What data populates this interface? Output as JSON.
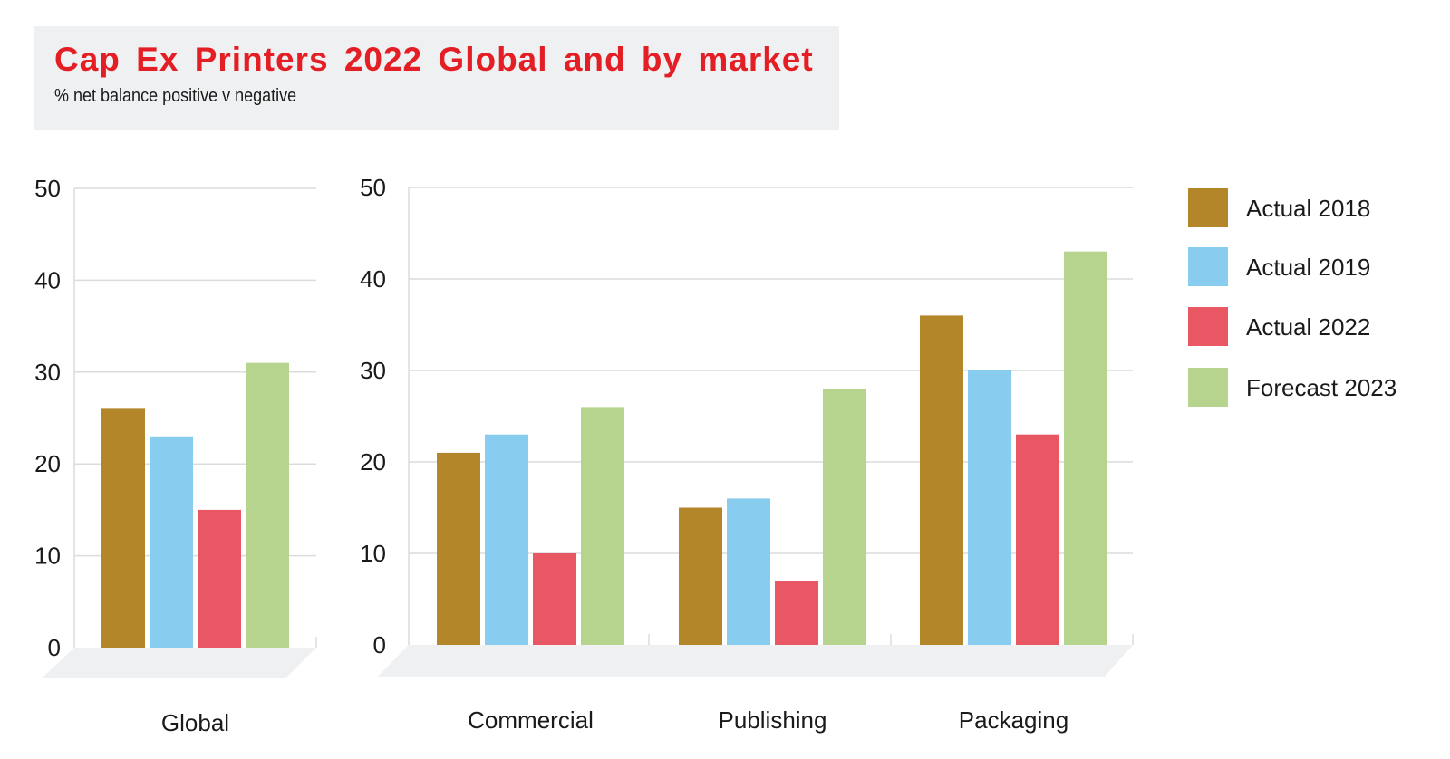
{
  "chart_data": {
    "type": "bar",
    "title": "Cap Ex Printers 2022 Global and by market",
    "subtitle": "% net balance positive v negative",
    "xlabel": "",
    "ylabel": "",
    "ylim": [
      0,
      50
    ],
    "yticks": [
      0,
      10,
      20,
      30,
      40,
      50
    ],
    "grid": true,
    "legend_position": "right",
    "categories": [
      "Global",
      "Commercial",
      "Publishing",
      "Packaging"
    ],
    "series": [
      {
        "name": "Actual 2018",
        "color": "#b3862a",
        "values": [
          26,
          21,
          15,
          36
        ]
      },
      {
        "name": "Actual 2019",
        "color": "#88cdf0",
        "values": [
          23,
          23,
          16,
          30
        ]
      },
      {
        "name": "Actual 2022",
        "color": "#e85763",
        "values": [
          15,
          10,
          7,
          23
        ]
      },
      {
        "name": "Forecast 2023",
        "color": "#b7d48e",
        "values": [
          31,
          26,
          28,
          43
        ]
      }
    ]
  }
}
